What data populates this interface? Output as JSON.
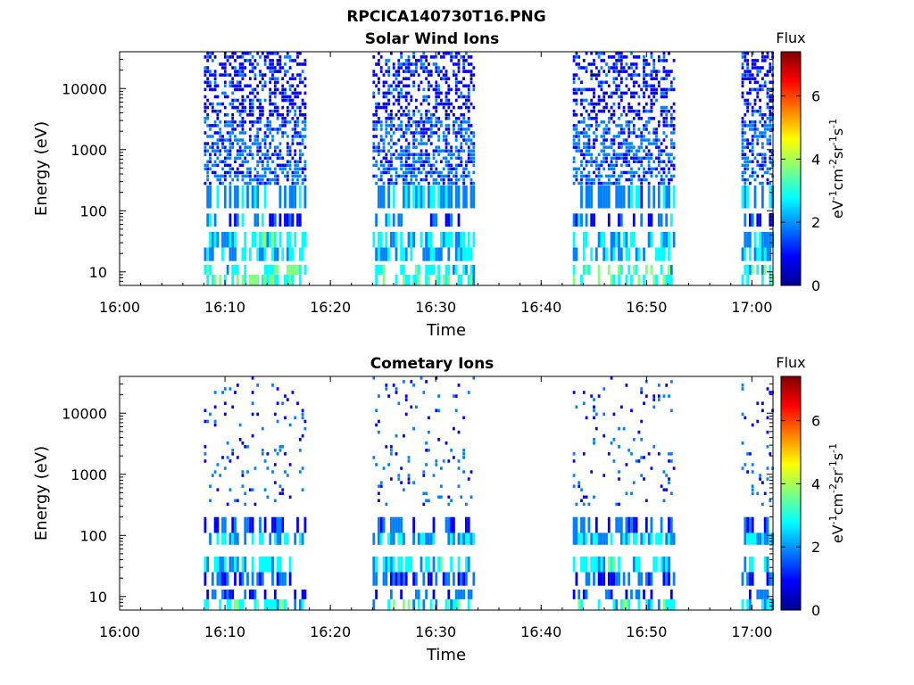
{
  "figure": {
    "title": "RPCICA140730T16.PNG"
  },
  "colormap": [
    "#00008F",
    "#0000FF",
    "#0080FF",
    "#00FFFF",
    "#80FF80",
    "#FFFF00",
    "#FF8000",
    "#FF0000",
    "#800000"
  ],
  "chart_data": [
    {
      "type": "heatmap",
      "title": "Solar Wind Ions",
      "xlabel": "Time",
      "ylabel": "Energy (eV)",
      "yscale": "log",
      "xlim": [
        "16:00",
        "17:02"
      ],
      "ylim": [
        6,
        40000
      ],
      "xticks": [
        "16:00",
        "16:10",
        "16:20",
        "16:30",
        "16:40",
        "16:50",
        "17:00"
      ],
      "yticks": [
        10,
        100,
        1000,
        10000
      ],
      "ytick_labels": [
        "10",
        "100",
        "1000",
        "10000"
      ],
      "colorbar": {
        "title": "Flux",
        "label": "eV-1 cm-2 sr-1 s-1",
        "range": [
          0,
          7.4
        ],
        "ticks": [
          0,
          2,
          4,
          6
        ],
        "tick_labels": [
          "0",
          "2",
          "4",
          "6"
        ]
      },
      "data_segments": [
        {
          "start": "16:08",
          "end": "16:17"
        },
        {
          "start": "16:24",
          "end": "16:33"
        },
        {
          "start": "16:43",
          "end": "16:52"
        },
        {
          "start": "16:59",
          "end": "17:02"
        }
      ],
      "energy_bands": [
        {
          "from_eV": 6,
          "to_eV": 9,
          "flux": 3.1,
          "occupancy": 0.45
        },
        {
          "from_eV": 9,
          "to_eV": 13,
          "flux": 3.0,
          "occupancy": 0.5
        },
        {
          "from_eV": 15,
          "to_eV": 25,
          "flux": 2.3,
          "occupancy": 0.55
        },
        {
          "from_eV": 25,
          "to_eV": 45,
          "flux": 2.5,
          "occupancy": 0.6
        },
        {
          "from_eV": 55,
          "to_eV": 90,
          "flux": 1.6,
          "occupancy": 0.45
        },
        {
          "from_eV": 110,
          "to_eV": 260,
          "flux": 2.1,
          "occupancy": 0.55
        },
        {
          "from_eV": 260,
          "to_eV": 3000,
          "flux": 1.6,
          "occupancy": 0.55
        },
        {
          "from_eV": 3000,
          "to_eV": 40000,
          "flux": 1.0,
          "occupancy": 0.45
        }
      ]
    },
    {
      "type": "heatmap",
      "title": "Cometary Ions",
      "xlabel": "Time",
      "ylabel": "Energy (eV)",
      "yscale": "log",
      "xlim": [
        "16:00",
        "17:02"
      ],
      "ylim": [
        6,
        40000
      ],
      "xticks": [
        "16:00",
        "16:10",
        "16:20",
        "16:30",
        "16:40",
        "16:50",
        "17:00"
      ],
      "yticks": [
        10,
        100,
        1000,
        10000
      ],
      "ytick_labels": [
        "10",
        "100",
        "1000",
        "10000"
      ],
      "colorbar": {
        "title": "Flux",
        "label": "eV-1 cm-2 sr-1 s-1",
        "range": [
          0,
          7.4
        ],
        "ticks": [
          0,
          2,
          4,
          6
        ],
        "tick_labels": [
          "0",
          "2",
          "4",
          "6"
        ]
      },
      "data_segments": [
        {
          "start": "16:08",
          "end": "16:17"
        },
        {
          "start": "16:24",
          "end": "16:33"
        },
        {
          "start": "16:43",
          "end": "16:52"
        },
        {
          "start": "16:59",
          "end": "17:02"
        }
      ],
      "energy_bands": [
        {
          "from_eV": 6,
          "to_eV": 9,
          "flux": 2.8,
          "occupancy": 0.4
        },
        {
          "from_eV": 9,
          "to_eV": 13,
          "flux": 1.5,
          "occupancy": 0.35
        },
        {
          "from_eV": 15,
          "to_eV": 25,
          "flux": 1.5,
          "occupancy": 0.55
        },
        {
          "from_eV": 25,
          "to_eV": 45,
          "flux": 2.5,
          "occupancy": 0.6
        },
        {
          "from_eV": 70,
          "to_eV": 110,
          "flux": 2.3,
          "occupancy": 0.6
        },
        {
          "from_eV": 110,
          "to_eV": 200,
          "flux": 1.4,
          "occupancy": 0.45
        },
        {
          "from_eV": 300,
          "to_eV": 3000,
          "flux": 1.6,
          "occupancy": 0.08
        },
        {
          "from_eV": 3000,
          "to_eV": 40000,
          "flux": 1.3,
          "occupancy": 0.06
        }
      ]
    }
  ]
}
